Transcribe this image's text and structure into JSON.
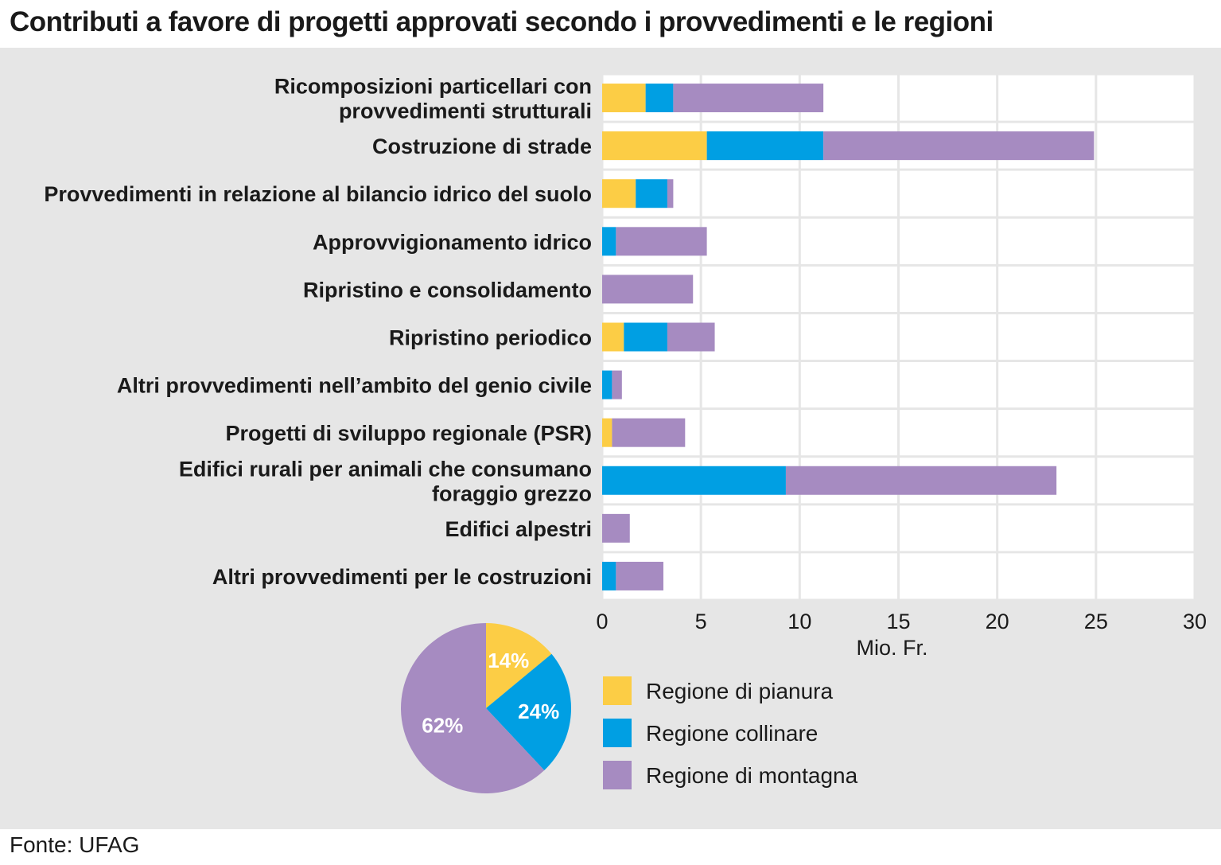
{
  "title": "Contributi a favore di progetti approvati secondo i provvedimenti e le regioni",
  "source": "Fonte: UFAG",
  "colors": {
    "pianura": "#fccd45",
    "collinare": "#009fe3",
    "montagna": "#a68bc1",
    "panel_bg": "#e6e6e6",
    "grid": "#e6e6e6"
  },
  "chart_data": [
    {
      "type": "bar",
      "orientation": "horizontal",
      "stacked": true,
      "categories": [
        [
          "Ricomposizioni particellari con",
          "provvedimenti strutturali"
        ],
        [
          "Costruzione di strade"
        ],
        [
          "Provvedimenti in relazione al bilancio idrico del suolo"
        ],
        [
          "Approvvigionamento idrico"
        ],
        [
          "Ripristino e consolidamento"
        ],
        [
          "Ripristino periodico"
        ],
        [
          "Altri provvedimenti nell’ambito del genio civile"
        ],
        [
          "Progetti di sviluppo regionale (PSR)"
        ],
        [
          "Edifici rurali per animali che consumano",
          "foraggio grezzo"
        ],
        [
          "Edifici alpestri"
        ],
        [
          "Altri provvedimenti per le costruzioni"
        ]
      ],
      "series": [
        {
          "name": "Regione di pianura",
          "color_key": "pianura",
          "values": [
            2.2,
            5.3,
            1.7,
            0,
            0,
            1.1,
            0,
            0.5,
            0,
            0,
            0
          ]
        },
        {
          "name": "Regione collinare",
          "color_key": "collinare",
          "values": [
            1.4,
            5.9,
            1.6,
            0.7,
            0,
            2.2,
            0.5,
            0,
            9.3,
            0,
            0.7
          ]
        },
        {
          "name": "Regione di montagna",
          "color_key": "montagna",
          "values": [
            7.6,
            13.7,
            0.3,
            4.6,
            4.6,
            2.4,
            0.5,
            3.7,
            13.7,
            1.4,
            2.4
          ]
        }
      ],
      "xlabel": "Mio. Fr.",
      "xlim": [
        0,
        30
      ],
      "xticks": [
        "0",
        "5",
        "10",
        "15",
        "20",
        "25",
        "30"
      ],
      "grid": true
    },
    {
      "type": "pie",
      "slices": [
        {
          "name": "Regione di pianura",
          "value": 14,
          "label": "14%",
          "color_key": "pianura"
        },
        {
          "name": "Regione collinare",
          "value": 24,
          "label": "24%",
          "color_key": "collinare"
        },
        {
          "name": "Regione di montagna",
          "value": 62,
          "label": "62%",
          "color_key": "montagna"
        }
      ]
    }
  ],
  "legend": [
    {
      "label": "Regione di pianura",
      "color_key": "pianura"
    },
    {
      "label": "Regione collinare",
      "color_key": "collinare"
    },
    {
      "label": "Regione di montagna",
      "color_key": "montagna"
    }
  ]
}
